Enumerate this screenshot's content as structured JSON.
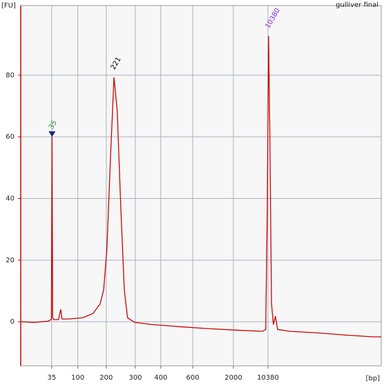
{
  "chart_data": {
    "type": "line",
    "title": "gulliver final",
    "y_label": "[FU]",
    "x_label": "[bp]",
    "xlim": [
      33.4,
      145.1
    ],
    "ylim": [
      -14.3,
      102.6
    ],
    "xticks": [
      {
        "value": 43.0,
        "label": "35"
      },
      {
        "value": 51.1,
        "label": "100"
      },
      {
        "value": 59.9,
        "label": "200"
      },
      {
        "value": 68.9,
        "label": "300"
      },
      {
        "value": 76.8,
        "label": "400"
      },
      {
        "value": 86.7,
        "label": "600"
      },
      {
        "value": 99.3,
        "label": "2000"
      },
      {
        "value": 110.0,
        "label": "10380"
      }
    ],
    "yticks": [
      0,
      20,
      40,
      60,
      80
    ],
    "grid": true,
    "series": [
      {
        "color": "#cc0000",
        "x": [
          33.4,
          37.6,
          41.9,
          42.8,
          42.9,
          43.1,
          43.3,
          43.6,
          45.1,
          45.8,
          46.2,
          48.4,
          52.6,
          55.8,
          58.0,
          59.1,
          60.1,
          61.2,
          62.3,
          63.3,
          64.4,
          65.5,
          66.5,
          68.7,
          74.0,
          82.6,
          91.2,
          99.7,
          108.3,
          109.3,
          109.8,
          110.2,
          110.6,
          111.1,
          111.7,
          112.3,
          113.0,
          116.8,
          125.4,
          133.9,
          142.5,
          145.1
        ],
        "values": [
          0,
          -0.2,
          0.2,
          0.7,
          0.9,
          60,
          1.3,
          0.7,
          0.7,
          4,
          0.9,
          0.9,
          1.3,
          2.7,
          5.8,
          10.3,
          23.7,
          52.9,
          79.3,
          68.5,
          37.2,
          10.3,
          1.3,
          -0.2,
          -0.9,
          -1.6,
          -2.2,
          -2.7,
          -3.1,
          -2.5,
          37.2,
          92.7,
          59.6,
          5.8,
          -0.9,
          1.8,
          -2.5,
          -3.1,
          -3.6,
          -4.3,
          -4.9,
          -4.9
        ]
      }
    ],
    "annotations": [
      {
        "label": "35",
        "x": 43.1,
        "y": 60,
        "color": "#2e8b2e",
        "marker": "triangle"
      },
      {
        "label": "221",
        "x": 62.3,
        "y": 79.3,
        "color": "#000000"
      },
      {
        "label": "10380",
        "x": 110.2,
        "y": 92.7,
        "color": "#8a2be2"
      }
    ]
  }
}
